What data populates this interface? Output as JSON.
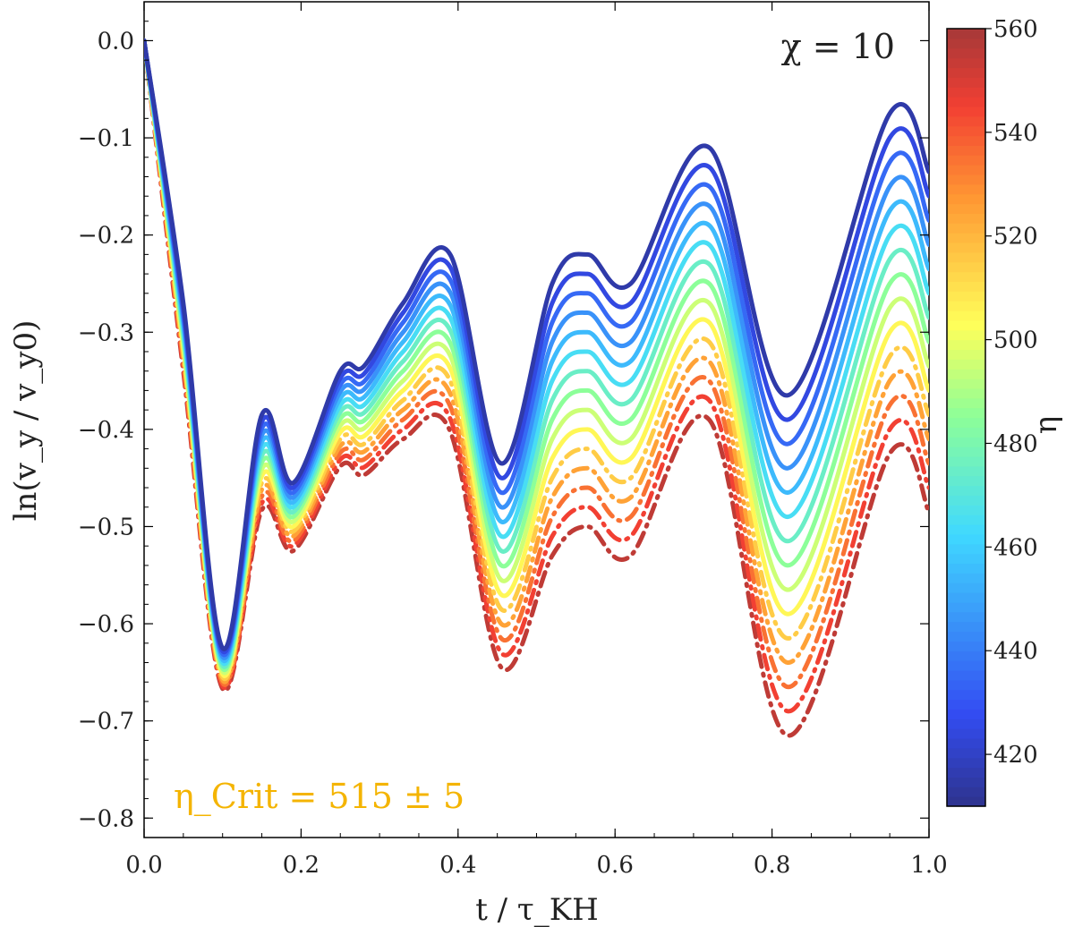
{
  "chart_data": {
    "type": "line",
    "xlabel": "t / τ_KH",
    "ylabel": "ln(v_y / v_y0)",
    "xlim": [
      0.0,
      1.0
    ],
    "ylim": [
      -0.82,
      0.04
    ],
    "x_ticks": [
      "0.0",
      "0.2",
      "0.4",
      "0.6",
      "0.8",
      "1.0"
    ],
    "y_ticks": [
      "0.0",
      "−0.1",
      "−0.2",
      "−0.3",
      "−0.4",
      "−0.5",
      "−0.6",
      "−0.7",
      "−0.8"
    ],
    "annotations": {
      "chi": "χ = 10",
      "eta_crit": "η_Crit = 515 ± 5"
    },
    "colorbar": {
      "label": "η",
      "range": [
        410,
        560
      ],
      "ticks": [
        "420",
        "440",
        "460",
        "480",
        "500",
        "520",
        "540",
        "560"
      ],
      "colormap": "jet"
    },
    "critical_eta": 515,
    "eta_values": [
      415,
      425,
      435,
      445,
      455,
      465,
      475,
      485,
      495,
      505,
      515,
      525,
      535,
      545,
      555
    ],
    "line_styles": "solid for η < 515, dash-dot for η ≥ 515",
    "x": [
      0.0,
      0.05,
      0.1,
      0.15,
      0.19,
      0.25,
      0.28,
      0.33,
      0.39,
      0.455,
      0.52,
      0.565,
      0.62,
      0.72,
      0.82,
      0.95,
      1.0
    ],
    "series": [
      {
        "eta": 415,
        "values": [
          0.0,
          -0.27,
          -0.625,
          -0.385,
          -0.455,
          -0.34,
          -0.335,
          -0.27,
          -0.22,
          -0.435,
          -0.25,
          -0.22,
          -0.25,
          -0.11,
          -0.365,
          -0.075,
          -0.135
        ]
      },
      {
        "eta": 425,
        "values": [
          0.0,
          -0.275,
          -0.628,
          -0.392,
          -0.46,
          -0.347,
          -0.343,
          -0.28,
          -0.233,
          -0.45,
          -0.27,
          -0.24,
          -0.27,
          -0.13,
          -0.39,
          -0.1,
          -0.16
        ]
      },
      {
        "eta": 435,
        "values": [
          0.0,
          -0.28,
          -0.631,
          -0.399,
          -0.465,
          -0.354,
          -0.351,
          -0.29,
          -0.246,
          -0.465,
          -0.29,
          -0.26,
          -0.29,
          -0.15,
          -0.415,
          -0.125,
          -0.185
        ]
      },
      {
        "eta": 445,
        "values": [
          0.0,
          -0.285,
          -0.634,
          -0.406,
          -0.47,
          -0.361,
          -0.359,
          -0.3,
          -0.259,
          -0.48,
          -0.31,
          -0.28,
          -0.31,
          -0.17,
          -0.44,
          -0.15,
          -0.21
        ]
      },
      {
        "eta": 455,
        "values": [
          0.0,
          -0.29,
          -0.637,
          -0.413,
          -0.475,
          -0.368,
          -0.367,
          -0.31,
          -0.272,
          -0.495,
          -0.33,
          -0.3,
          -0.33,
          -0.19,
          -0.465,
          -0.175,
          -0.235
        ]
      },
      {
        "eta": 465,
        "values": [
          0.0,
          -0.295,
          -0.64,
          -0.42,
          -0.48,
          -0.375,
          -0.375,
          -0.32,
          -0.285,
          -0.51,
          -0.35,
          -0.32,
          -0.35,
          -0.21,
          -0.49,
          -0.2,
          -0.26
        ]
      },
      {
        "eta": 475,
        "values": [
          0.0,
          -0.3,
          -0.643,
          -0.427,
          -0.485,
          -0.382,
          -0.383,
          -0.33,
          -0.298,
          -0.525,
          -0.37,
          -0.34,
          -0.37,
          -0.23,
          -0.515,
          -0.225,
          -0.285
        ]
      },
      {
        "eta": 485,
        "values": [
          0.0,
          -0.305,
          -0.646,
          -0.434,
          -0.49,
          -0.389,
          -0.391,
          -0.34,
          -0.311,
          -0.54,
          -0.39,
          -0.36,
          -0.39,
          -0.25,
          -0.54,
          -0.25,
          -0.31
        ]
      },
      {
        "eta": 495,
        "values": [
          0.0,
          -0.31,
          -0.649,
          -0.441,
          -0.495,
          -0.396,
          -0.399,
          -0.35,
          -0.324,
          -0.555,
          -0.41,
          -0.38,
          -0.41,
          -0.27,
          -0.565,
          -0.275,
          -0.335
        ]
      },
      {
        "eta": 505,
        "values": [
          0.0,
          -0.315,
          -0.652,
          -0.448,
          -0.5,
          -0.403,
          -0.407,
          -0.36,
          -0.337,
          -0.57,
          -0.43,
          -0.4,
          -0.43,
          -0.29,
          -0.59,
          -0.3,
          -0.36
        ]
      },
      {
        "eta": 515,
        "values": [
          0.0,
          -0.32,
          -0.655,
          -0.455,
          -0.505,
          -0.41,
          -0.415,
          -0.37,
          -0.35,
          -0.585,
          -0.45,
          -0.42,
          -0.45,
          -0.31,
          -0.615,
          -0.325,
          -0.385
        ]
      },
      {
        "eta": 525,
        "values": [
          0.0,
          -0.325,
          -0.658,
          -0.462,
          -0.51,
          -0.417,
          -0.423,
          -0.38,
          -0.363,
          -0.6,
          -0.47,
          -0.44,
          -0.47,
          -0.33,
          -0.64,
          -0.35,
          -0.41
        ]
      },
      {
        "eta": 535,
        "values": [
          0.0,
          -0.33,
          -0.661,
          -0.469,
          -0.515,
          -0.424,
          -0.431,
          -0.39,
          -0.376,
          -0.615,
          -0.49,
          -0.46,
          -0.49,
          -0.35,
          -0.665,
          -0.375,
          -0.435
        ]
      },
      {
        "eta": 545,
        "values": [
          0.0,
          -0.335,
          -0.664,
          -0.476,
          -0.52,
          -0.431,
          -0.439,
          -0.4,
          -0.389,
          -0.63,
          -0.51,
          -0.48,
          -0.51,
          -0.37,
          -0.69,
          -0.4,
          -0.46
        ]
      },
      {
        "eta": 555,
        "values": [
          0.0,
          -0.34,
          -0.667,
          -0.483,
          -0.525,
          -0.438,
          -0.447,
          -0.41,
          -0.402,
          -0.645,
          -0.53,
          -0.5,
          -0.53,
          -0.39,
          -0.715,
          -0.425,
          -0.485
        ]
      }
    ]
  }
}
